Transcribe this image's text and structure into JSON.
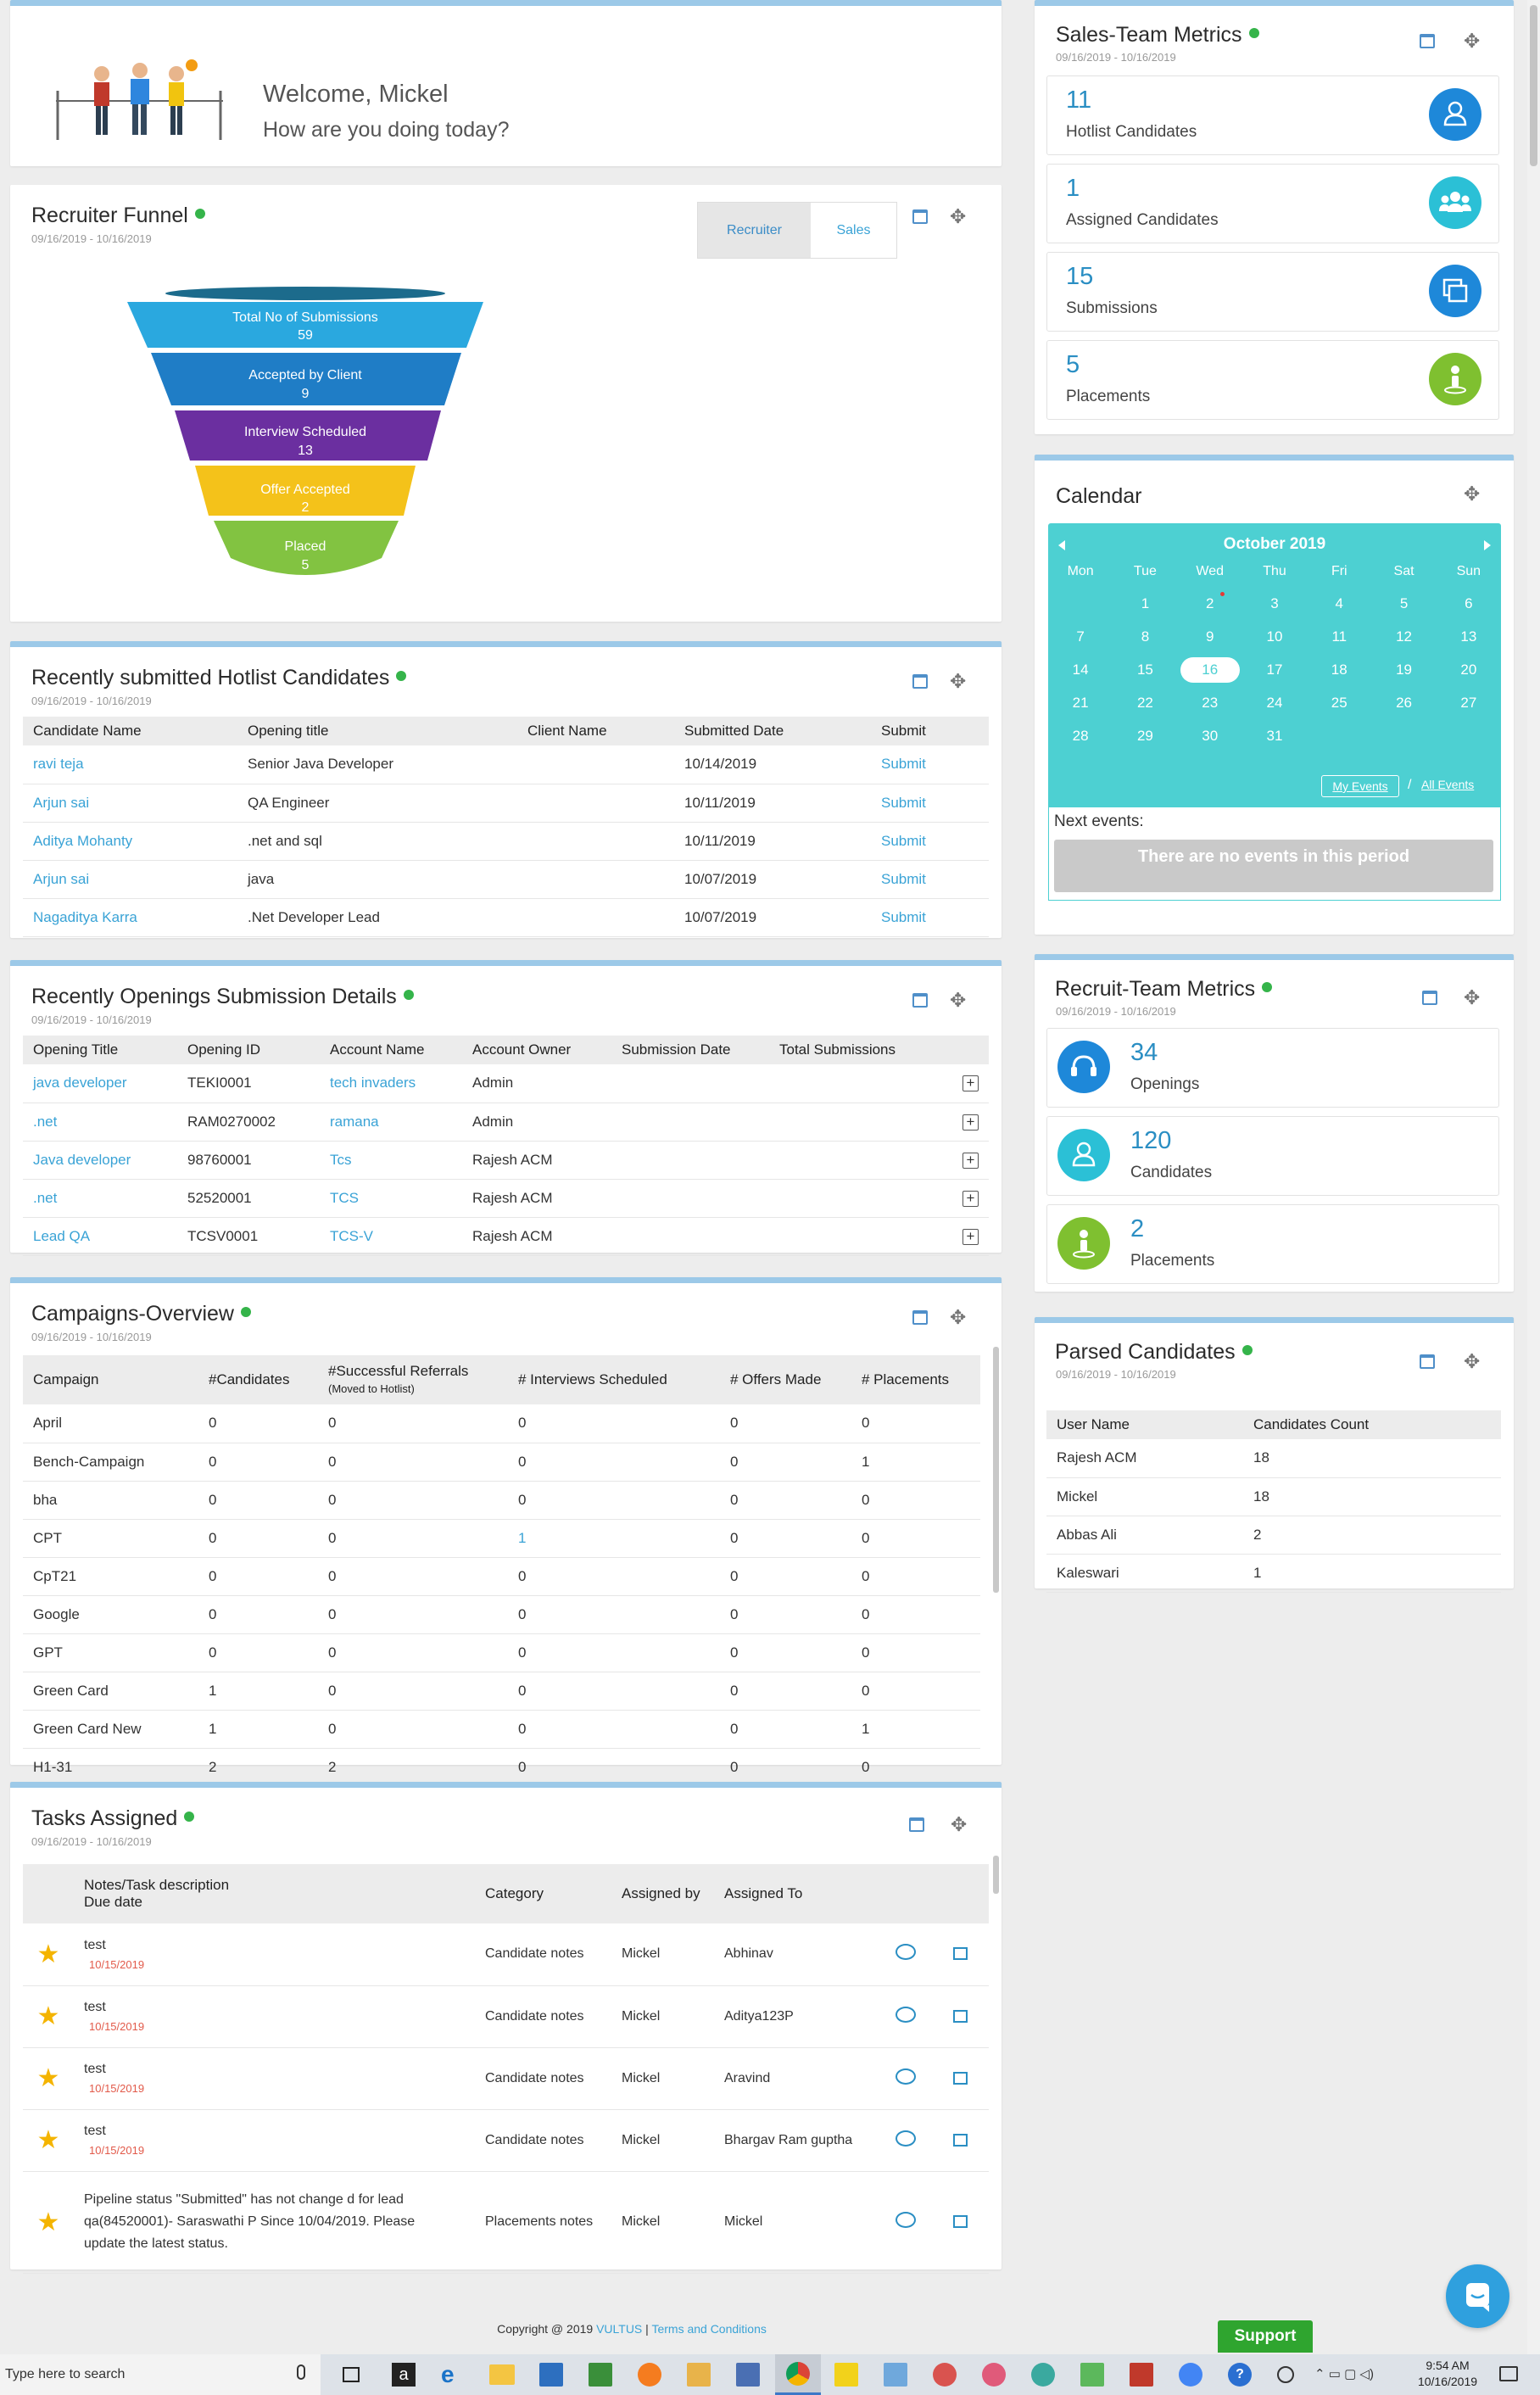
{
  "welcome": {
    "greeting": "Welcome, Mickel",
    "subtitle": "How are you doing today?"
  },
  "funnel": {
    "title": "Recruiter Funnel",
    "date_range": "09/16/2019 - 10/16/2019",
    "tabs": [
      "Recruiter",
      "Sales"
    ],
    "stages": [
      {
        "label": "Total No of Submissions",
        "value": "59",
        "color": "#2aa8df"
      },
      {
        "label": "Accepted by Client",
        "value": "9",
        "color": "#1f7dc6"
      },
      {
        "label": "Interview Scheduled",
        "value": "13",
        "color": "#6b2fa0"
      },
      {
        "label": "Offer Accepted",
        "value": "2",
        "color": "#f4c21a"
      },
      {
        "label": "Placed",
        "value": "5",
        "color": "#82c341"
      }
    ]
  },
  "hotlist": {
    "title": "Recently submitted Hotlist Candidates",
    "date_range": "09/16/2019 - 10/16/2019",
    "columns": [
      "Candidate Name",
      "Opening title",
      "Client Name",
      "Submitted Date",
      "Submit"
    ],
    "rows": [
      {
        "name": "ravi teja",
        "opening": "Senior Java Developer",
        "client": "",
        "date": "10/14/2019",
        "action": "Submit"
      },
      {
        "name": "Arjun sai",
        "opening": "QA Engineer",
        "client": "",
        "date": "10/11/2019",
        "action": "Submit"
      },
      {
        "name": "Aditya Mohanty",
        "opening": ".net and sql",
        "client": "",
        "date": "10/11/2019",
        "action": "Submit"
      },
      {
        "name": "Arjun sai",
        "opening": "java",
        "client": "",
        "date": "10/07/2019",
        "action": "Submit"
      },
      {
        "name": "Nagaditya Karra",
        "opening": ".Net Developer Lead",
        "client": "",
        "date": "10/07/2019",
        "action": "Submit"
      }
    ]
  },
  "openings": {
    "title": "Recently Openings Submission Details",
    "date_range": "09/16/2019 - 10/16/2019",
    "columns": [
      "Opening Title",
      "Opening ID",
      "Account Name",
      "Account Owner",
      "Submission Date",
      "Total Submissions"
    ],
    "rows": [
      {
        "title": "java developer",
        "id": "TEKI0001",
        "account": "tech invaders",
        "owner": "Admin"
      },
      {
        "title": ".net",
        "id": "RAM0270002",
        "account": "ramana",
        "owner": "Admin"
      },
      {
        "title": "Java developer",
        "id": "98760001",
        "account": "Tcs",
        "owner": "Rajesh ACM"
      },
      {
        "title": ".net",
        "id": "52520001",
        "account": "TCS",
        "owner": "Rajesh ACM"
      },
      {
        "title": "Lead QA",
        "id": "TCSV0001",
        "account": "TCS-V",
        "owner": "Rajesh ACM"
      }
    ]
  },
  "campaigns": {
    "title": "Campaigns-Overview",
    "date_range": "09/16/2019 - 10/16/2019",
    "columns": [
      "Campaign",
      "#Candidates",
      "#Successful Referrals",
      "# Interviews Scheduled",
      "# Offers Made",
      "# Placements"
    ],
    "referral_sub": "(Moved to Hotlist)",
    "rows": [
      [
        "April",
        "0",
        "0",
        "0",
        "0",
        "0"
      ],
      [
        "Bench-Campaign",
        "0",
        "0",
        "0",
        "0",
        "1"
      ],
      [
        "bha",
        "0",
        "0",
        "0",
        "0",
        "0"
      ],
      [
        "CPT",
        "0",
        "0",
        "1",
        "0",
        "0"
      ],
      [
        "CpT21",
        "0",
        "0",
        "0",
        "0",
        "0"
      ],
      [
        "Google",
        "0",
        "0",
        "0",
        "0",
        "0"
      ],
      [
        "GPT",
        "0",
        "0",
        "0",
        "0",
        "0"
      ],
      [
        "Green Card",
        "1",
        "0",
        "0",
        "0",
        "0"
      ],
      [
        "Green Card New",
        "1",
        "0",
        "0",
        "0",
        "1"
      ],
      [
        "H1-31",
        "2",
        "2",
        "0",
        "0",
        "0"
      ]
    ]
  },
  "tasks": {
    "title": "Tasks Assigned",
    "date_range": "09/16/2019 - 10/16/2019",
    "columns": {
      "notes": "Notes/Task description",
      "due": "Due date",
      "category": "Category",
      "assigned_by": "Assigned by",
      "assigned_to": "Assigned To"
    },
    "rows": [
      {
        "note": "test",
        "due": "10/15/2019",
        "category": "Candidate notes",
        "by": "Mickel",
        "to": "Abhinav"
      },
      {
        "note": "test",
        "due": "10/15/2019",
        "category": "Candidate notes",
        "by": "Mickel",
        "to": "Aditya123P"
      },
      {
        "note": "test",
        "due": "10/15/2019",
        "category": "Candidate notes",
        "by": "Mickel",
        "to": "Aravind"
      },
      {
        "note": "test",
        "due": "10/15/2019",
        "category": "Candidate notes",
        "by": "Mickel",
        "to": "Bhargav Ram guptha"
      },
      {
        "note": "Pipeline status \"Submitted\" has not change d for lead qa(84520001)- Saraswathi P Since 10/04/2019. Please update the latest status.",
        "due": "",
        "category": "Placements notes",
        "by": "Mickel",
        "to": "Mickel"
      }
    ]
  },
  "sales_metrics": {
    "title": "Sales-Team Metrics",
    "date_range": "09/16/2019 - 10/16/2019",
    "items": [
      {
        "value": "11",
        "label": "Hotlist Candidates",
        "icon": "user-icon",
        "color": "#1e88d9"
      },
      {
        "value": "1",
        "label": "Assigned Candidates",
        "icon": "group-icon",
        "color": "#2bc0d6"
      },
      {
        "value": "15",
        "label": "Submissions",
        "icon": "submissions-icon",
        "color": "#1e88d9"
      },
      {
        "value": "5",
        "label": "Placements",
        "icon": "placement-icon",
        "color": "#7fc030"
      }
    ]
  },
  "calendar": {
    "title": "Calendar",
    "month": "October 2019",
    "weekdays": [
      "Mon",
      "Tue",
      "Wed",
      "Thu",
      "Fri",
      "Sat",
      "Sun"
    ],
    "weeks": [
      [
        "",
        "1",
        "2",
        "3",
        "4",
        "5",
        "6"
      ],
      [
        "7",
        "8",
        "9",
        "10",
        "11",
        "12",
        "13"
      ],
      [
        "14",
        "15",
        "16",
        "17",
        "18",
        "19",
        "20"
      ],
      [
        "21",
        "22",
        "23",
        "24",
        "25",
        "26",
        "27"
      ],
      [
        "28",
        "29",
        "30",
        "31",
        "",
        "",
        ""
      ]
    ],
    "today": "16",
    "my_events": "My Events",
    "separator": "/",
    "all_events": "All Events",
    "next_events_label": "Next events:",
    "no_events": "There are no events in this period"
  },
  "recruit_metrics": {
    "title": "Recruit-Team Metrics",
    "date_range": "09/16/2019 - 10/16/2019",
    "items": [
      {
        "value": "34",
        "label": "Openings",
        "icon": "headset-icon",
        "color": "#1e88d9"
      },
      {
        "value": "120",
        "label": "Candidates",
        "icon": "user-icon",
        "color": "#2bc0d6"
      },
      {
        "value": "2",
        "label": "Placements",
        "icon": "placement-icon",
        "color": "#7fc030"
      }
    ]
  },
  "parsed": {
    "title": "Parsed Candidates",
    "date_range": "09/16/2019 - 10/16/2019",
    "columns": [
      "User Name",
      "Candidates Count"
    ],
    "rows": [
      [
        "Rajesh ACM",
        "18"
      ],
      [
        "Mickel",
        "18"
      ],
      [
        "Abbas Ali",
        "2"
      ],
      [
        "Kaleswari",
        "1"
      ]
    ]
  },
  "footer": {
    "copyright": "Copyright @ 2019 ",
    "brand": "VULTUS",
    "sep": " | ",
    "terms": "Terms and Conditions",
    "support": "Support"
  },
  "taskbar": {
    "search_placeholder": "Type here to search",
    "time": "9:54 AM",
    "date": "10/16/2019"
  }
}
